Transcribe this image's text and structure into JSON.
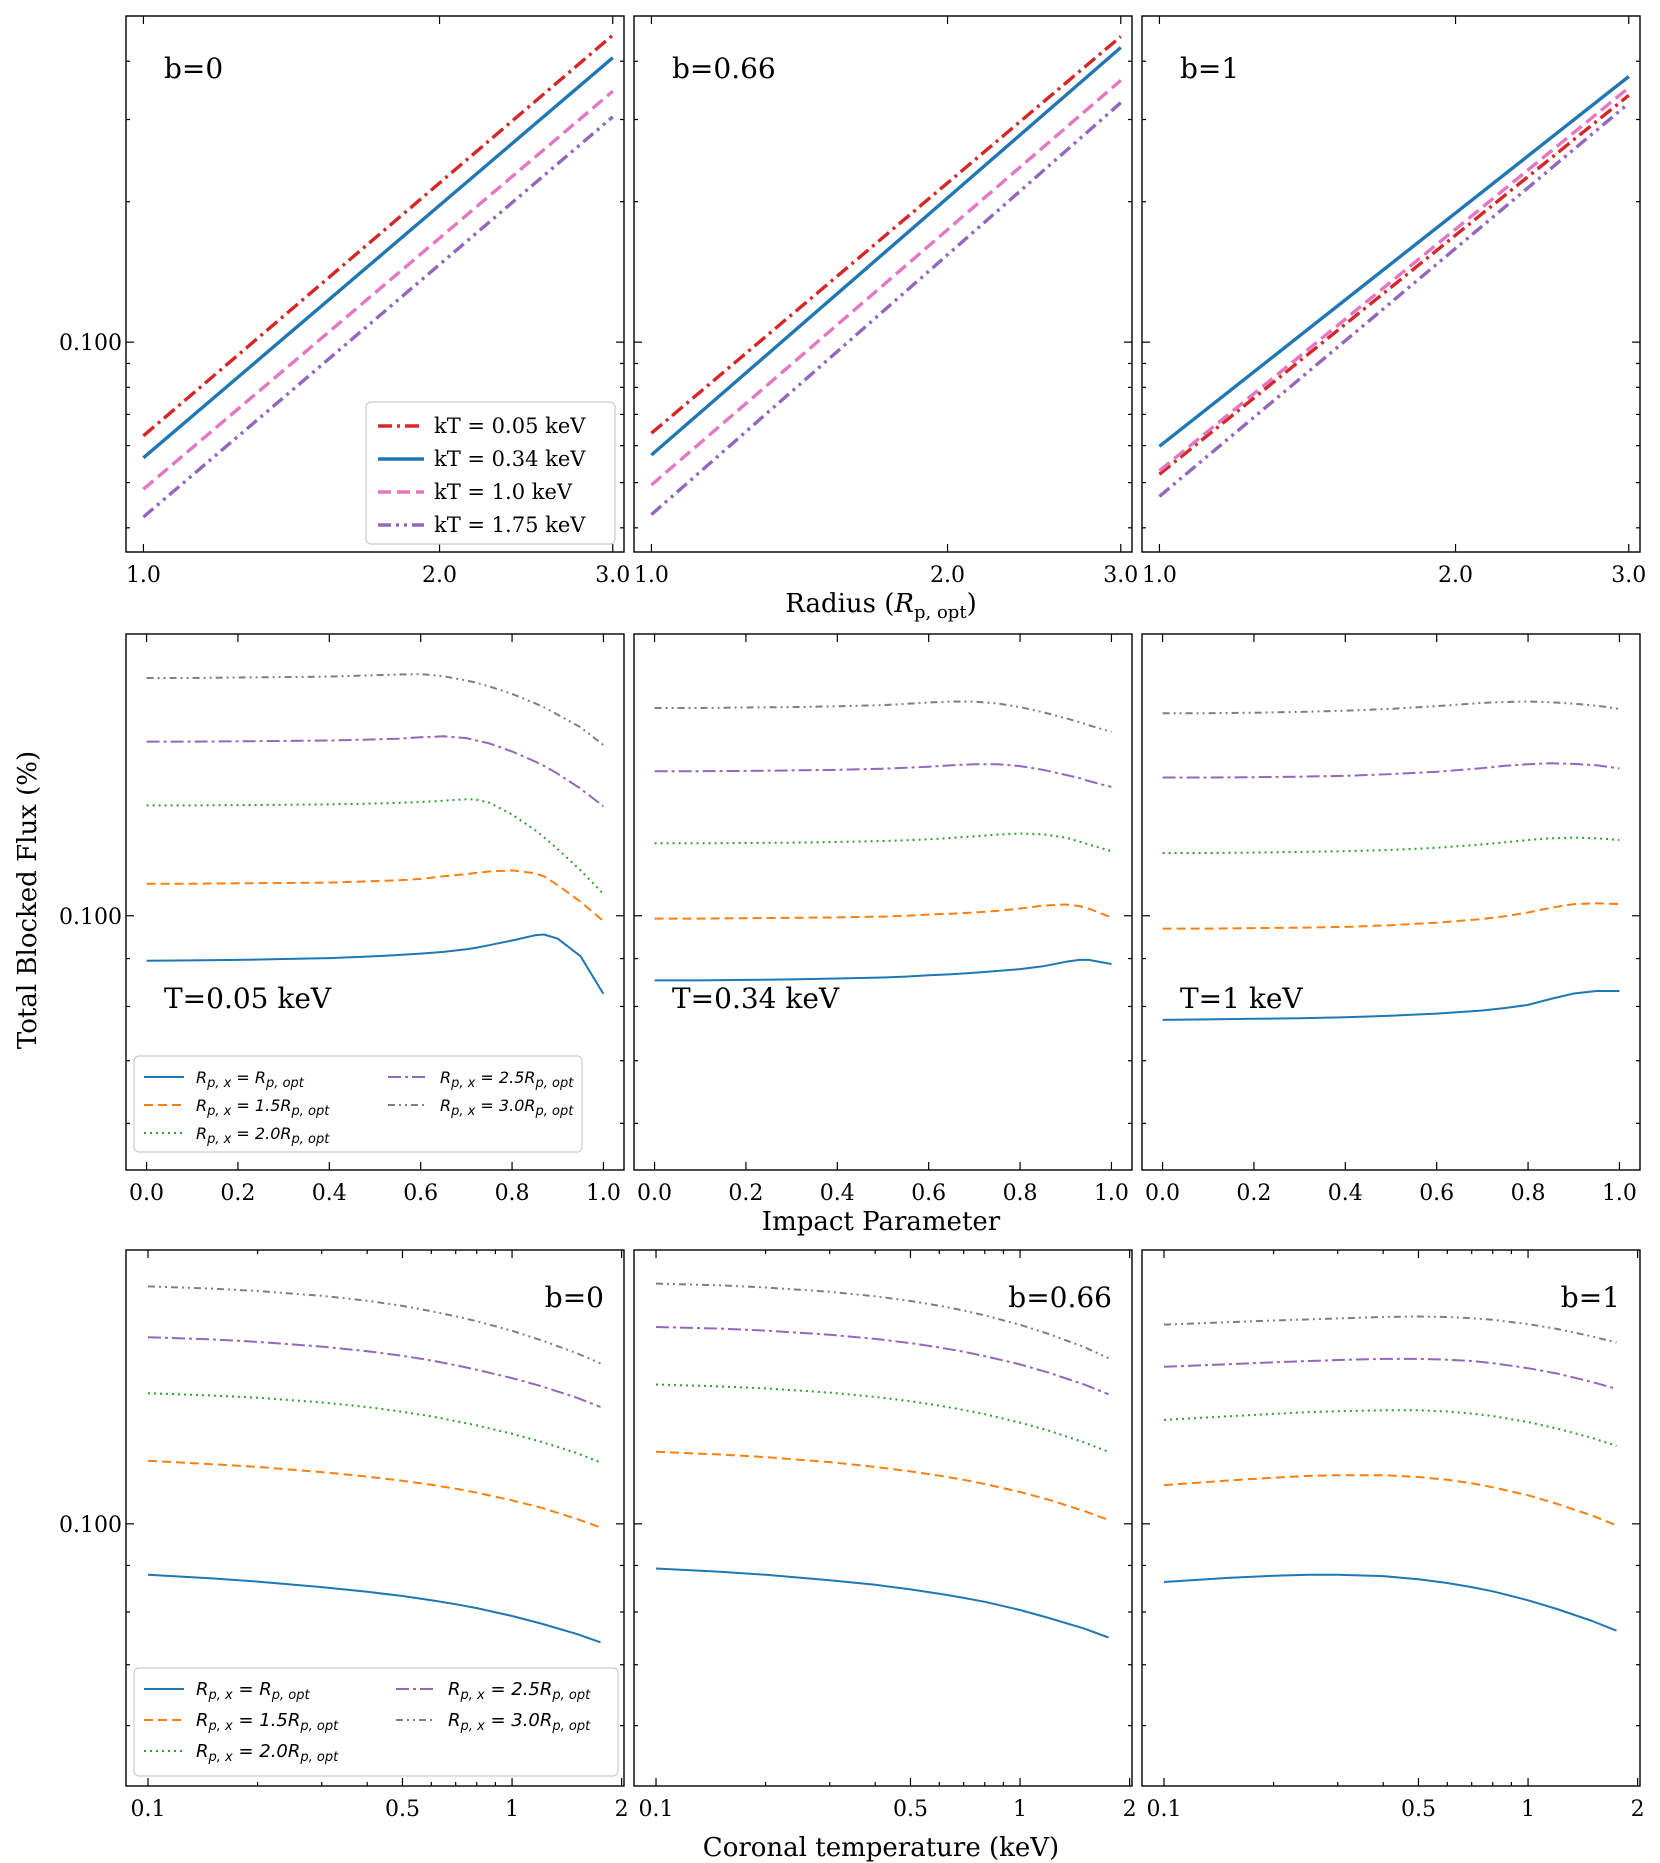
{
  "figure": {
    "ylabel": "Total Blocked Flux (%)",
    "row_xlabels": [
      "Radius (R_p, opt)",
      "Impact Parameter",
      "Coronal temperature (keV)"
    ]
  },
  "colors": {
    "kT_0.05": "#d62728",
    "kT_0.34": "#1f77b4",
    "kT_1.0": "#e377c2",
    "kT_1.75": "#9467bd",
    "Rx_1.0": "#1f77b4",
    "Rx_1.5": "#ff7f0e",
    "Rx_2.0": "#2ca02c",
    "Rx_2.5": "#9467bd",
    "Rx_3.0": "#7f7f7f"
  },
  "chart_data": [
    {
      "type": "line",
      "row": 0,
      "col": 0,
      "panel_label": "b=0",
      "xscale": "log",
      "yscale": "log",
      "xlim": [
        0.96,
        3.08
      ],
      "ylim": [
        0.0355,
        0.5
      ],
      "xticks": [
        "1.0",
        "2.0",
        "3.0"
      ],
      "yticks": [
        "0.100"
      ],
      "legend": {
        "location": "lower-right",
        "style": "A"
      },
      "x": [
        1.0,
        3.0
      ],
      "series": [
        {
          "name": "kT = 0.05 keV",
          "values": [
            0.063,
            0.455
          ]
        },
        {
          "name": "kT = 0.34 keV",
          "values": [
            0.0565,
            0.407
          ]
        },
        {
          "name": "kT = 1.0 keV",
          "values": [
            0.0484,
            0.345
          ]
        },
        {
          "name": "kT = 1.75 keV",
          "values": [
            0.0422,
            0.304
          ]
        }
      ]
    },
    {
      "type": "line",
      "row": 0,
      "col": 1,
      "panel_label": "b=0.66",
      "xscale": "log",
      "yscale": "log",
      "xlim": [
        0.96,
        3.08
      ],
      "ylim": [
        0.0355,
        0.5
      ],
      "xticks": [
        "1.0",
        "2.0",
        "3.0"
      ],
      "yticks": [],
      "x": [
        1.0,
        3.0
      ],
      "series": [
        {
          "name": "kT = 0.05 keV",
          "values": [
            0.0638,
            0.452
          ]
        },
        {
          "name": "kT = 0.34 keV",
          "values": [
            0.0573,
            0.428
          ]
        },
        {
          "name": "kT = 1.0 keV",
          "values": [
            0.0494,
            0.364
          ]
        },
        {
          "name": "kT = 1.75 keV",
          "values": [
            0.0427,
            0.326
          ]
        }
      ]
    },
    {
      "type": "line",
      "row": 0,
      "col": 2,
      "panel_label": "b=1",
      "xscale": "log",
      "yscale": "log",
      "xlim": [
        0.96,
        3.08
      ],
      "ylim": [
        0.0355,
        0.5
      ],
      "xticks": [
        "1.0",
        "2.0",
        "3.0"
      ],
      "yticks": [],
      "x": [
        1.0,
        3.0
      ],
      "series": [
        {
          "name": "kT = 0.05 keV",
          "values": [
            0.0521,
            0.338
          ]
        },
        {
          "name": "kT = 0.34 keV",
          "values": [
            0.0598,
            0.371
          ]
        },
        {
          "name": "kT = 1.0 keV",
          "values": [
            0.053,
            0.351
          ]
        },
        {
          "name": "kT = 1.75 keV",
          "values": [
            0.0467,
            0.325
          ]
        }
      ]
    },
    {
      "type": "line",
      "row": 1,
      "col": 0,
      "panel_label": "T=0.05 keV",
      "xscale": "linear",
      "yscale": "log",
      "xlim": [
        -0.045,
        1.045
      ],
      "ylim": [
        0.0535,
        0.2
      ],
      "xticks": [
        "0.0",
        "0.2",
        "0.4",
        "0.6",
        "0.8",
        "1.0"
      ],
      "yticks": [
        "0.100"
      ],
      "legend": {
        "location": "lower-left",
        "style": "B"
      },
      "x": [
        0.0,
        0.1,
        0.2,
        0.3,
        0.4,
        0.5,
        0.55,
        0.6,
        0.65,
        0.7,
        0.72,
        0.75,
        0.8,
        0.85,
        0.87,
        0.9,
        0.95,
        1.0
      ],
      "series": [
        {
          "name": "R_p,x = R_p,opt",
          "values": [
            0.0895,
            0.0896,
            0.0897,
            0.0899,
            0.0901,
            0.0905,
            0.0908,
            0.0911,
            0.0915,
            0.0921,
            0.0924,
            0.093,
            0.0941,
            0.0953,
            0.0955,
            0.0945,
            0.0905,
            0.0825
          ]
        },
        {
          "name": "R_p,x = 1.5R_p,opt",
          "values": [
            0.1082,
            0.1082,
            0.1083,
            0.1084,
            0.1085,
            0.1089,
            0.1091,
            0.1095,
            0.1102,
            0.1108,
            0.1111,
            0.1115,
            0.1118,
            0.111,
            0.1102,
            0.1078,
            0.1035,
            0.0987
          ]
        },
        {
          "name": "R_p,x = 2.0R_p,opt",
          "values": [
            0.1312,
            0.1312,
            0.1313,
            0.1314,
            0.1315,
            0.1318,
            0.132,
            0.1323,
            0.1327,
            0.1332,
            0.1331,
            0.1321,
            0.1283,
            0.1235,
            0.1213,
            0.1178,
            0.1118,
            0.1055
          ]
        },
        {
          "name": "R_p,x = 2.5R_p,opt",
          "values": [
            0.1535,
            0.1535,
            0.1536,
            0.1537,
            0.1539,
            0.1543,
            0.1546,
            0.1551,
            0.1555,
            0.1548,
            0.154,
            0.1528,
            0.1498,
            0.1462,
            0.1446,
            0.1418,
            0.1367,
            0.1309
          ]
        },
        {
          "name": "R_p,x = 3.0R_p,opt",
          "values": [
            0.1795,
            0.1795,
            0.1797,
            0.1799,
            0.1801,
            0.1807,
            0.181,
            0.1812,
            0.1803,
            0.1784,
            0.1775,
            0.1758,
            0.1726,
            0.1687,
            0.167,
            0.164,
            0.159,
            0.1522
          ]
        }
      ]
    },
    {
      "type": "line",
      "row": 1,
      "col": 1,
      "panel_label": "T=0.34 keV",
      "xscale": "linear",
      "yscale": "log",
      "xlim": [
        -0.045,
        1.045
      ],
      "ylim": [
        0.0535,
        0.2
      ],
      "xticks": [
        "0.0",
        "0.2",
        "0.4",
        "0.6",
        "0.8",
        "1.0"
      ],
      "yticks": [],
      "x": [
        0.0,
        0.1,
        0.2,
        0.3,
        0.4,
        0.5,
        0.55,
        0.6,
        0.65,
        0.7,
        0.75,
        0.8,
        0.85,
        0.9,
        0.93,
        0.95,
        1.0
      ],
      "series": [
        {
          "name": "R_p,x = R_p,opt",
          "values": [
            0.0853,
            0.0853,
            0.0854,
            0.0855,
            0.0857,
            0.0859,
            0.0861,
            0.0864,
            0.0866,
            0.0869,
            0.0873,
            0.0877,
            0.0883,
            0.0893,
            0.0897,
            0.0897,
            0.0888
          ]
        },
        {
          "name": "R_p,x = 1.5R_p,opt",
          "values": [
            0.0993,
            0.0993,
            0.0994,
            0.0995,
            0.0996,
            0.0998,
            0.1,
            0.1003,
            0.1005,
            0.1008,
            0.1012,
            0.1018,
            0.1025,
            0.1028,
            0.1024,
            0.1018,
            0.0996
          ]
        },
        {
          "name": "R_p,x = 2.0R_p,opt",
          "values": [
            0.1195,
            0.1195,
            0.1196,
            0.1197,
            0.1199,
            0.1202,
            0.1204,
            0.1207,
            0.1211,
            0.1216,
            0.1221,
            0.1224,
            0.1222,
            0.1212,
            0.12,
            0.1192,
            0.1172
          ]
        },
        {
          "name": "R_p,x = 2.5R_p,opt",
          "values": [
            0.1427,
            0.1427,
            0.1428,
            0.143,
            0.1432,
            0.1436,
            0.1439,
            0.1443,
            0.1448,
            0.1452,
            0.1452,
            0.1445,
            0.1432,
            0.1414,
            0.1403,
            0.1393,
            0.1373
          ]
        },
        {
          "name": "R_p,x = 3.0R_p,opt",
          "values": [
            0.1667,
            0.1667,
            0.1669,
            0.1671,
            0.1674,
            0.1679,
            0.1684,
            0.169,
            0.1694,
            0.1693,
            0.1686,
            0.1671,
            0.165,
            0.1626,
            0.161,
            0.1598,
            0.1572
          ]
        }
      ]
    },
    {
      "type": "line",
      "row": 1,
      "col": 2,
      "panel_label": "T=1 keV",
      "xscale": "linear",
      "yscale": "log",
      "xlim": [
        -0.045,
        1.045
      ],
      "ylim": [
        0.0535,
        0.2
      ],
      "xticks": [
        "0.0",
        "0.2",
        "0.4",
        "0.6",
        "0.8",
        "1.0"
      ],
      "yticks": [],
      "x": [
        0.0,
        0.1,
        0.2,
        0.3,
        0.4,
        0.5,
        0.6,
        0.7,
        0.75,
        0.8,
        0.85,
        0.9,
        0.95,
        1.0
      ],
      "series": [
        {
          "name": "R_p,x = R_p,opt",
          "values": [
            0.0774,
            0.0775,
            0.0776,
            0.0777,
            0.0779,
            0.0782,
            0.0786,
            0.0792,
            0.0797,
            0.0803,
            0.0815,
            0.0826,
            0.0831,
            0.0831
          ]
        },
        {
          "name": "R_p,x = 1.5R_p,opt",
          "values": [
            0.0969,
            0.0969,
            0.097,
            0.0971,
            0.0973,
            0.0977,
            0.0983,
            0.0992,
            0.0999,
            0.1008,
            0.102,
            0.1029,
            0.1031,
            0.1029
          ]
        },
        {
          "name": "R_p,x = 2.0R_p,opt",
          "values": [
            0.1167,
            0.1167,
            0.1168,
            0.117,
            0.1172,
            0.1176,
            0.1182,
            0.1192,
            0.1198,
            0.1205,
            0.121,
            0.1212,
            0.121,
            0.1205
          ]
        },
        {
          "name": "R_p,x = 2.5R_p,opt",
          "values": [
            0.1405,
            0.1405,
            0.1406,
            0.1408,
            0.1411,
            0.1417,
            0.1425,
            0.1438,
            0.1446,
            0.1452,
            0.1455,
            0.1453,
            0.1448,
            0.1437
          ]
        },
        {
          "name": "R_p,x = 3.0R_p,opt",
          "values": [
            0.1646,
            0.1646,
            0.1648,
            0.1651,
            0.1656,
            0.1664,
            0.1675,
            0.1688,
            0.1692,
            0.1694,
            0.1691,
            0.1685,
            0.1677,
            0.1663
          ]
        }
      ]
    },
    {
      "type": "line",
      "row": 2,
      "col": 0,
      "panel_label": "b=0",
      "xscale": "log",
      "yscale": "log",
      "xlim": [
        0.087,
        2.03
      ],
      "ylim": [
        0.0515,
        0.2
      ],
      "xticks": [
        "0.1",
        "0.5",
        "1",
        "2"
      ],
      "yticks": [
        "0.100"
      ],
      "legend": {
        "location": "lower-left",
        "style": "C"
      },
      "x": [
        0.1,
        0.15,
        0.2,
        0.3,
        0.4,
        0.5,
        0.6,
        0.7,
        0.8,
        1.0,
        1.2,
        1.5,
        1.75
      ],
      "series": [
        {
          "name": "R_p,x = R_p,opt",
          "values": [
            0.0879,
            0.0871,
            0.0864,
            0.0852,
            0.0842,
            0.0833,
            0.0824,
            0.0816,
            0.0808,
            0.0792,
            0.0777,
            0.0757,
            0.0741
          ]
        },
        {
          "name": "R_p,x = 1.5R_p,opt",
          "values": [
            0.1173,
            0.1163,
            0.1155,
            0.114,
            0.1127,
            0.1115,
            0.1104,
            0.1093,
            0.1082,
            0.1061,
            0.1042,
            0.1013,
            0.0991
          ]
        },
        {
          "name": "R_p,x = 2.0R_p,opt",
          "values": [
            0.1392,
            0.1384,
            0.1376,
            0.136,
            0.1344,
            0.1328,
            0.1313,
            0.1297,
            0.1283,
            0.1256,
            0.1231,
            0.1197,
            0.1168
          ]
        },
        {
          "name": "R_p,x = 2.5R_p,opt",
          "values": [
            0.1604,
            0.1595,
            0.1585,
            0.1566,
            0.1548,
            0.153,
            0.1512,
            0.1494,
            0.1477,
            0.1446,
            0.1417,
            0.1377,
            0.1344
          ]
        },
        {
          "name": "R_p,x = 3.0R_p,opt",
          "values": [
            0.1824,
            0.1814,
            0.1803,
            0.1781,
            0.1759,
            0.1736,
            0.1713,
            0.1691,
            0.167,
            0.163,
            0.1592,
            0.1541,
            0.1501
          ]
        }
      ]
    },
    {
      "type": "line",
      "row": 2,
      "col": 1,
      "panel_label": "b=0.66",
      "xscale": "log",
      "yscale": "log",
      "xlim": [
        0.087,
        2.03
      ],
      "ylim": [
        0.0515,
        0.2
      ],
      "xticks": [
        "0.1",
        "0.5",
        "1",
        "2"
      ],
      "yticks": [],
      "x": [
        0.1,
        0.15,
        0.2,
        0.3,
        0.4,
        0.5,
        0.6,
        0.7,
        0.8,
        1.0,
        1.2,
        1.5,
        1.75
      ],
      "series": [
        {
          "name": "R_p,x = R_p,opt",
          "values": [
            0.0893,
            0.0886,
            0.0879,
            0.0867,
            0.0857,
            0.0847,
            0.0838,
            0.0829,
            0.0821,
            0.0804,
            0.0788,
            0.0767,
            0.075
          ]
        },
        {
          "name": "R_p,x = 1.5R_p,opt",
          "values": [
            0.12,
            0.1192,
            0.1184,
            0.1169,
            0.1155,
            0.1142,
            0.113,
            0.1118,
            0.1106,
            0.1084,
            0.1063,
            0.1033,
            0.101
          ]
        },
        {
          "name": "R_p,x = 2.0R_p,opt",
          "values": [
            0.1423,
            0.1416,
            0.1409,
            0.1394,
            0.1379,
            0.1364,
            0.1349,
            0.1334,
            0.132,
            0.1292,
            0.1266,
            0.1229,
            0.12
          ]
        },
        {
          "name": "R_p,x = 2.5R_p,opt",
          "values": [
            0.1646,
            0.1639,
            0.1631,
            0.1614,
            0.1597,
            0.158,
            0.1563,
            0.1546,
            0.1529,
            0.1497,
            0.1466,
            0.1423,
            0.1388
          ]
        },
        {
          "name": "R_p,x = 3.0R_p,opt",
          "values": [
            0.1837,
            0.1829,
            0.1819,
            0.1799,
            0.1779,
            0.1758,
            0.1737,
            0.1716,
            0.1695,
            0.1655,
            0.1617,
            0.1564,
            0.1521
          ]
        }
      ]
    },
    {
      "type": "line",
      "row": 2,
      "col": 2,
      "panel_label": "b=1",
      "xscale": "log",
      "yscale": "log",
      "xlim": [
        0.087,
        2.03
      ],
      "ylim": [
        0.0515,
        0.2
      ],
      "xticks": [
        "0.1",
        "0.5",
        "1",
        "2"
      ],
      "yticks": [],
      "x": [
        0.1,
        0.15,
        0.2,
        0.25,
        0.3,
        0.4,
        0.5,
        0.6,
        0.7,
        0.8,
        1.0,
        1.2,
        1.5,
        1.75
      ],
      "series": [
        {
          "name": "R_p,x = R_p,opt",
          "values": [
            0.0863,
            0.0872,
            0.0877,
            0.0879,
            0.0879,
            0.0876,
            0.0869,
            0.0861,
            0.0852,
            0.0843,
            0.0824,
            0.0806,
            0.0782,
            0.0763
          ]
        },
        {
          "name": "R_p,x = 1.5R_p,opt",
          "values": [
            0.1103,
            0.1116,
            0.1124,
            0.1129,
            0.1131,
            0.1131,
            0.1126,
            0.1118,
            0.1108,
            0.1097,
            0.1075,
            0.1052,
            0.1021,
            0.0996
          ]
        },
        {
          "name": "R_p,x = 2.0R_p,opt",
          "values": [
            0.1301,
            0.1313,
            0.1321,
            0.1327,
            0.133,
            0.1333,
            0.1333,
            0.1329,
            0.1322,
            0.1314,
            0.1294,
            0.1273,
            0.1243,
            0.1218
          ]
        },
        {
          "name": "R_p,x = 2.5R_p,opt",
          "values": [
            0.1488,
            0.1498,
            0.1505,
            0.151,
            0.1514,
            0.1518,
            0.1518,
            0.1515,
            0.151,
            0.1502,
            0.1483,
            0.1463,
            0.1432,
            0.1407
          ]
        },
        {
          "name": "R_p,x = 3.0R_p,opt",
          "values": [
            0.1656,
            0.1666,
            0.1673,
            0.1678,
            0.1682,
            0.1688,
            0.169,
            0.1688,
            0.1683,
            0.1676,
            0.1658,
            0.1638,
            0.1607,
            0.1582
          ]
        }
      ]
    }
  ]
}
